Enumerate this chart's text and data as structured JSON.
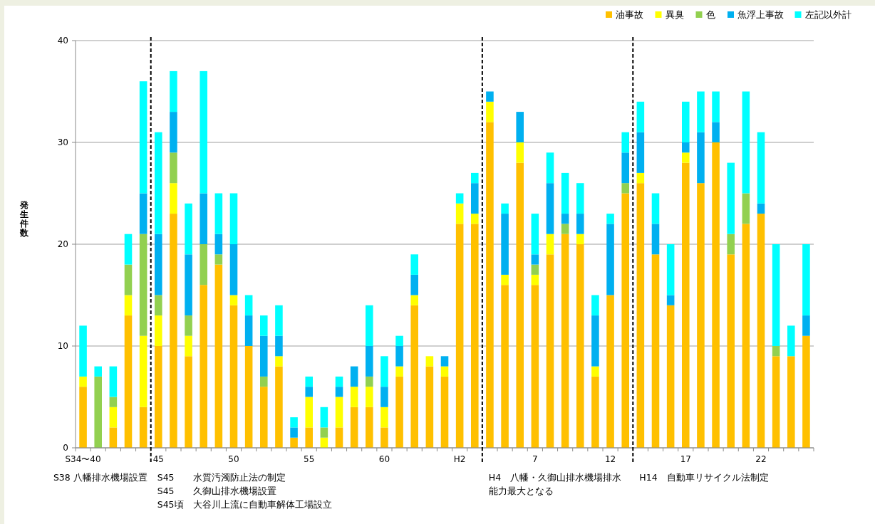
{
  "chart_data": {
    "type": "bar",
    "stacked": true,
    "ylabel": "発生件数",
    "categories": [
      "S34〜40",
      null,
      null,
      null,
      null,
      "45",
      null,
      null,
      null,
      null,
      "50",
      null,
      null,
      null,
      null,
      "55",
      null,
      null,
      null,
      null,
      "60",
      null,
      null,
      null,
      null,
      "H2",
      null,
      null,
      null,
      null,
      "7",
      null,
      null,
      null,
      null,
      "12",
      null,
      null,
      null,
      null,
      "17",
      null,
      null,
      null,
      null,
      "22",
      null,
      null,
      null
    ],
    "series": [
      {
        "name": "油事故",
        "color": "#ffc000",
        "values": [
          6,
          0,
          2,
          13,
          4,
          10,
          23,
          9,
          16,
          18,
          14,
          10,
          6,
          8,
          1,
          2,
          0,
          2,
          4,
          4,
          2,
          7,
          14,
          8,
          7,
          22,
          22,
          32,
          16,
          28,
          16,
          19,
          21,
          20,
          7,
          15,
          25,
          26,
          19,
          14,
          28,
          26,
          30,
          19,
          22,
          23,
          9,
          9,
          11
        ]
      },
      {
        "name": "異臭",
        "color": "#ffff00",
        "values": [
          1,
          0,
          2,
          2,
          7,
          3,
          3,
          2,
          0,
          0,
          1,
          0,
          0,
          1,
          0,
          3,
          1,
          3,
          2,
          2,
          2,
          1,
          1,
          1,
          1,
          2,
          1,
          2,
          1,
          2,
          1,
          2,
          0,
          1,
          1,
          0,
          0,
          1,
          0,
          0,
          1,
          0,
          0,
          0,
          0,
          0,
          0,
          0,
          0
        ]
      },
      {
        "name": "色",
        "color": "#92d050",
        "values": [
          0,
          7,
          1,
          3,
          10,
          2,
          3,
          2,
          4,
          1,
          0,
          0,
          1,
          0,
          0,
          0,
          1,
          0,
          0,
          1,
          0,
          0,
          0,
          0,
          0,
          0,
          0,
          0,
          0,
          0,
          1,
          0,
          1,
          0,
          0,
          0,
          1,
          0,
          0,
          0,
          0,
          0,
          0,
          2,
          3,
          0,
          1,
          0,
          0
        ]
      },
      {
        "name": "魚浮上事故",
        "color": "#00b0f0",
        "values": [
          0,
          0,
          0,
          0,
          4,
          6,
          4,
          6,
          5,
          2,
          5,
          3,
          4,
          2,
          1,
          1,
          0,
          1,
          2,
          3,
          2,
          2,
          2,
          0,
          1,
          0,
          3,
          1,
          6,
          3,
          1,
          5,
          1,
          2,
          5,
          7,
          3,
          4,
          3,
          1,
          1,
          5,
          2,
          0,
          0,
          1,
          0,
          0,
          2
        ]
      },
      {
        "name": "左記以外計",
        "color": "#00ffff",
        "values": [
          5,
          1,
          3,
          3,
          11,
          10,
          4,
          5,
          12,
          4,
          5,
          2,
          2,
          3,
          1,
          1,
          2,
          1,
          0,
          4,
          3,
          1,
          2,
          0,
          0,
          1,
          1,
          0,
          1,
          0,
          4,
          3,
          4,
          3,
          2,
          1,
          2,
          3,
          3,
          5,
          4,
          4,
          3,
          7,
          10,
          7,
          10,
          3,
          7
        ]
      }
    ],
    "ylim": [
      0,
      40
    ],
    "yticks": [
      0,
      10,
      20,
      30,
      40
    ],
    "grid": "y",
    "legend": "top right",
    "annotations": [
      "S38 八幡排水機場設置",
      "S45　　水質汚濁防止法の制定",
      "S45　　久御山排水機場設置",
      "S45頃　大谷川上流に自動車解体工場設立",
      "H4　八幡・久御山排水機場排水能力最大となる",
      "H14　自動車リサイクル法制定"
    ]
  }
}
